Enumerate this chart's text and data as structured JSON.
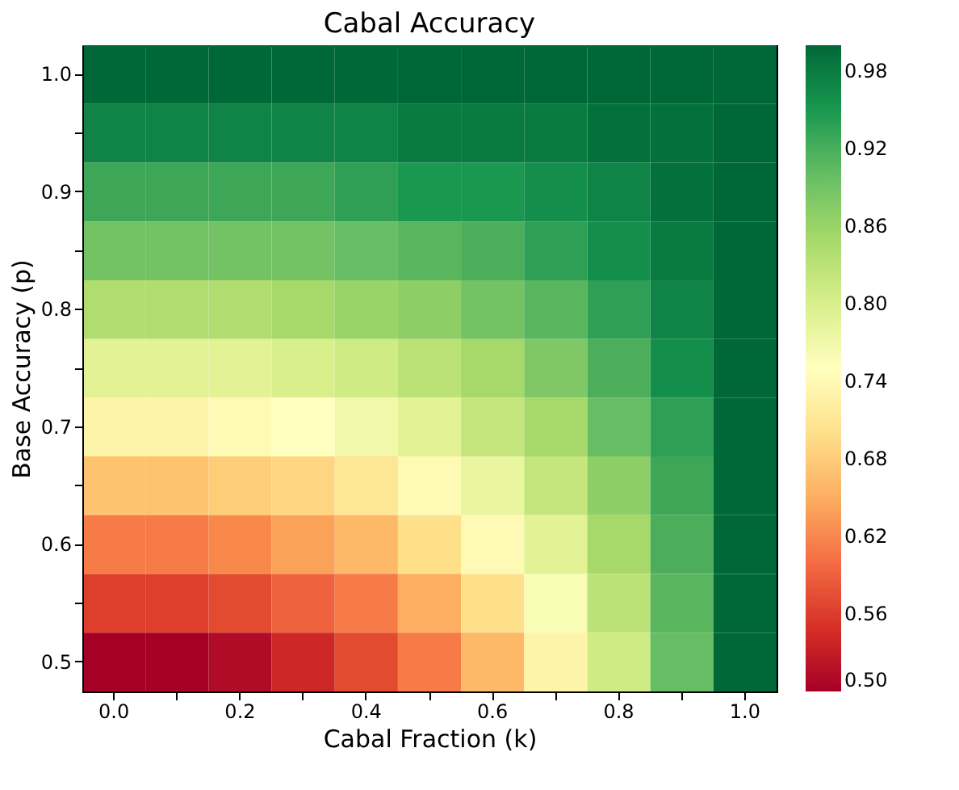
{
  "chart_data": {
    "type": "heatmap",
    "title": "Cabal Accuracy",
    "xlabel": "Cabal Fraction (k)",
    "ylabel": "Base Accuracy (p)",
    "categories": [
      "0.0",
      null,
      "0.2",
      null,
      "0.4",
      null,
      "0.6",
      null,
      "0.8",
      null,
      "1.0"
    ],
    "y_categories": [
      "1.0",
      null,
      "0.9",
      null,
      "0.8",
      null,
      "0.7",
      null,
      "0.6",
      null,
      "0.5"
    ],
    "cells": [
      [
        1.0,
        1.0,
        1.0,
        1.0,
        1.0,
        1.0,
        1.0,
        1.0,
        1.0,
        1.0,
        1.0
      ],
      [
        0.97,
        0.97,
        0.97,
        0.97,
        0.97,
        0.98,
        0.98,
        0.98,
        0.99,
        0.99,
        1.0
      ],
      [
        0.93,
        0.93,
        0.93,
        0.93,
        0.94,
        0.95,
        0.95,
        0.96,
        0.97,
        0.99,
        1.0
      ],
      [
        0.89,
        0.89,
        0.89,
        0.89,
        0.9,
        0.91,
        0.92,
        0.94,
        0.96,
        0.98,
        1.0
      ],
      [
        0.84,
        0.84,
        0.84,
        0.85,
        0.86,
        0.87,
        0.89,
        0.91,
        0.94,
        0.97,
        1.0
      ],
      [
        0.79,
        0.79,
        0.79,
        0.8,
        0.81,
        0.83,
        0.85,
        0.88,
        0.92,
        0.96,
        1.0
      ],
      [
        0.73,
        0.73,
        0.74,
        0.75,
        0.77,
        0.79,
        0.82,
        0.85,
        0.9,
        0.94,
        1.0
      ],
      [
        0.67,
        0.67,
        0.68,
        0.69,
        0.71,
        0.74,
        0.78,
        0.82,
        0.87,
        0.93,
        1.0
      ],
      [
        0.61,
        0.61,
        0.62,
        0.64,
        0.66,
        0.7,
        0.74,
        0.79,
        0.85,
        0.92,
        1.0
      ],
      [
        0.56,
        0.56,
        0.57,
        0.59,
        0.61,
        0.65,
        0.7,
        0.76,
        0.83,
        0.91,
        1.0
      ],
      [
        0.5,
        0.5,
        0.51,
        0.54,
        0.57,
        0.61,
        0.66,
        0.73,
        0.81,
        0.9,
        1.0
      ]
    ],
    "clim": [
      0.5,
      1.0
    ],
    "cticks": [
      {
        "value": 0.5,
        "label": "0.50"
      },
      0.56,
      0.62,
      0.68,
      0.74,
      {
        "value": 0.8,
        "label": "0.80"
      },
      0.86,
      0.92,
      0.98
    ],
    "colors": [
      "#a50026",
      "#d73027",
      "#f46d43",
      "#fdae61",
      "#fee08b",
      "#ffffbf",
      "#d9ef8b",
      "#a6d96a",
      "#66bd63",
      "#1a9850",
      "#006837"
    ],
    "grid": false
  }
}
